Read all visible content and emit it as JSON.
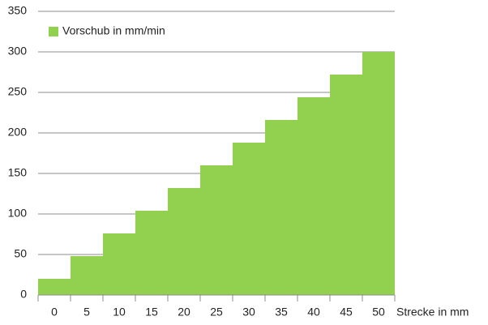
{
  "chart_data": {
    "type": "bar",
    "x_label": "Strecke in mm",
    "categories": [
      "0",
      "5",
      "10",
      "15",
      "20",
      "25",
      "30",
      "35",
      "40",
      "45",
      "50"
    ],
    "series": [
      {
        "name": "Vorschub in mm/min",
        "color": "#92d050",
        "values": [
          20,
          48,
          76,
          104,
          132,
          160,
          188,
          216,
          244,
          272,
          300
        ]
      }
    ],
    "ylim": [
      0,
      350
    ],
    "yticks": [
      0,
      50,
      100,
      150,
      200,
      250,
      300,
      350
    ],
    "grid": true,
    "legend": "top-left"
  }
}
